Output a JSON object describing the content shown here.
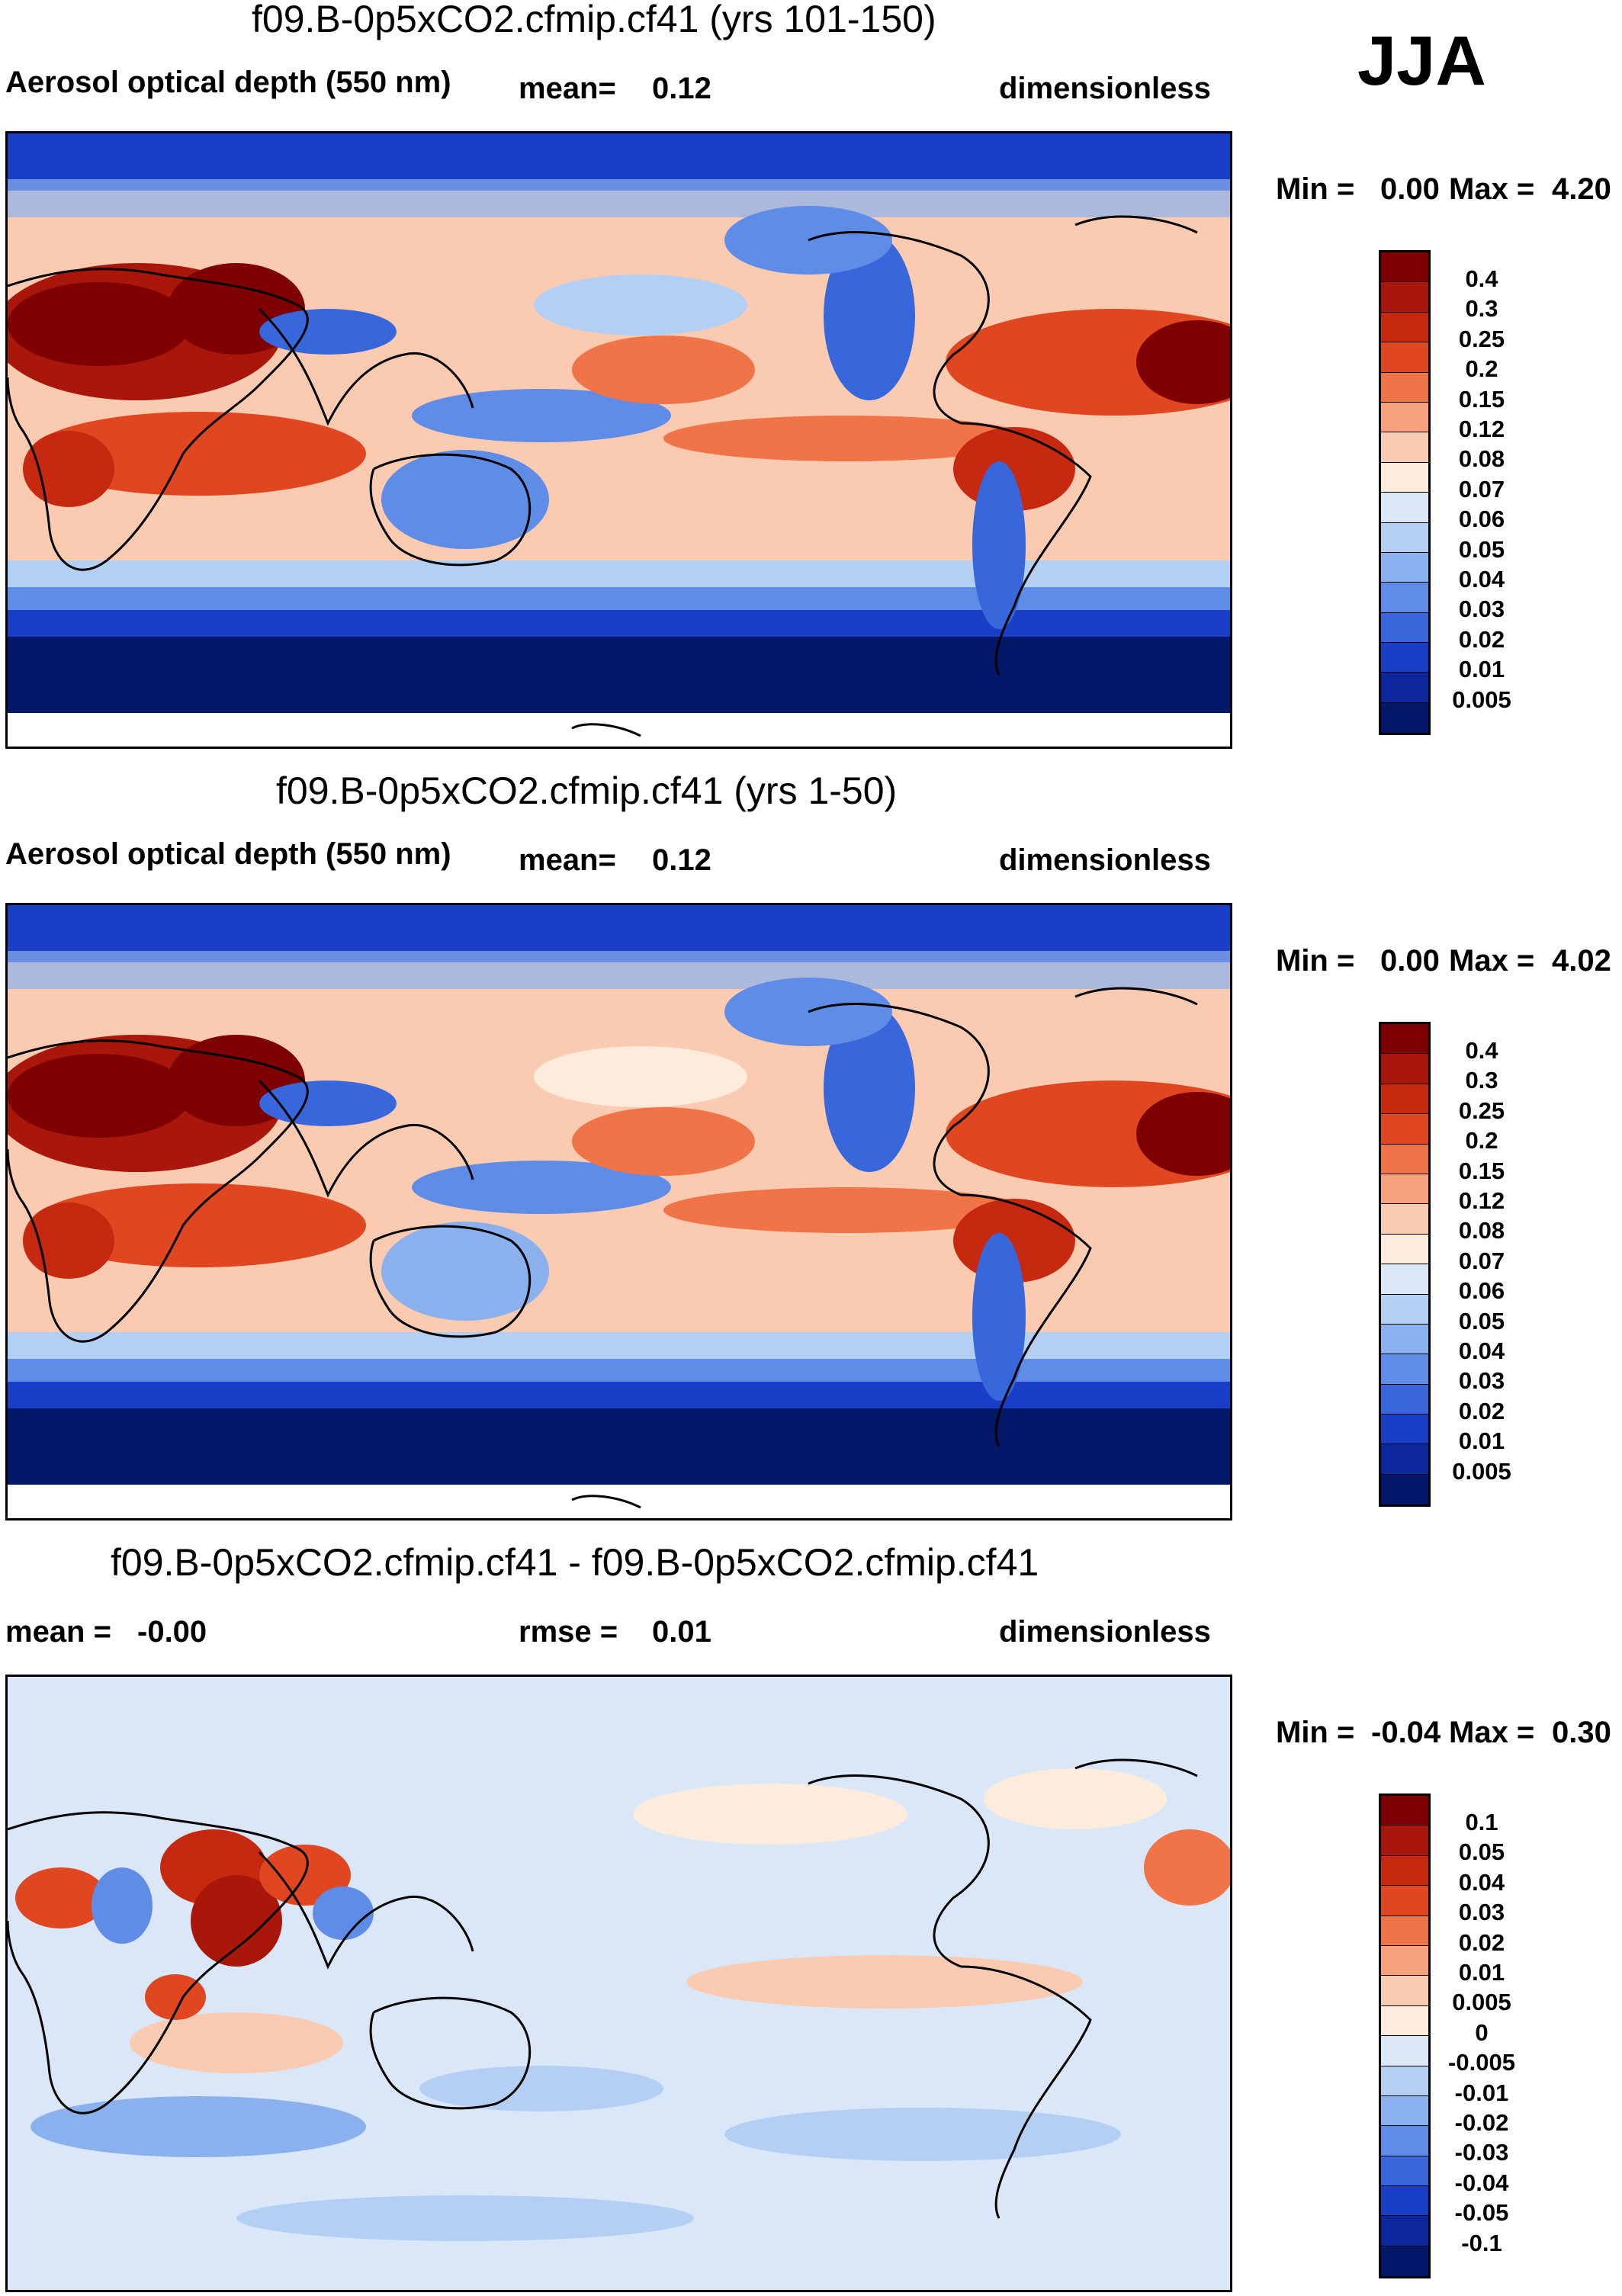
{
  "season_label": "JJA",
  "panels": [
    {
      "title": "f09.B-0p5xCO2.cfmip.cf41 (yrs 101-150)",
      "variable": "Aerosol optical depth (550 nm)",
      "stat_label": "mean=",
      "stat_value": "0.12",
      "stat2_label": "",
      "stat2_value": "",
      "units": "dimensionless",
      "min_label": "Min =",
      "min_value": "0.00",
      "max_label": "Max =",
      "max_value": "4.20",
      "colorbar_levels": [
        "0.4",
        "0.3",
        "0.25",
        "0.2",
        "0.15",
        "0.12",
        "0.08",
        "0.07",
        "0.06",
        "0.05",
        "0.04",
        "0.03",
        "0.02",
        "0.01",
        "0.005"
      ]
    },
    {
      "title": "f09.B-0p5xCO2.cfmip.cf41 (yrs 1-50)",
      "variable": "Aerosol optical depth (550 nm)",
      "stat_label": "mean=",
      "stat_value": "0.12",
      "stat2_label": "",
      "stat2_value": "",
      "units": "dimensionless",
      "min_label": "Min =",
      "min_value": "0.00",
      "max_label": "Max =",
      "max_value": "4.02",
      "colorbar_levels": [
        "0.4",
        "0.3",
        "0.25",
        "0.2",
        "0.15",
        "0.12",
        "0.08",
        "0.07",
        "0.06",
        "0.05",
        "0.04",
        "0.03",
        "0.02",
        "0.01",
        "0.005"
      ]
    },
    {
      "title": "f09.B-0p5xCO2.cfmip.cf41 - f09.B-0p5xCO2.cfmip.cf41",
      "variable": "",
      "stat_label": "mean =",
      "stat_value": "-0.00",
      "stat2_label": "rmse =",
      "stat2_value": "0.01",
      "units": "dimensionless",
      "min_label": "Min =",
      "min_value": "-0.04",
      "max_label": "Max =",
      "max_value": "0.30",
      "colorbar_levels": [
        "0.1",
        "0.05",
        "0.04",
        "0.03",
        "0.02",
        "0.01",
        "0.005",
        "0",
        "-0.005",
        "-0.01",
        "-0.02",
        "-0.03",
        "-0.04",
        "-0.05",
        "-0.1"
      ]
    }
  ],
  "colors": {
    "scale": [
      "#7f0000",
      "#a8170a",
      "#c6290f",
      "#e0461f",
      "#f07447",
      "#f7a27d",
      "#fbcbb1",
      "#fdebdc",
      "#d9e7f8",
      "#b3cff4",
      "#8bb0ee",
      "#5f8ce6",
      "#3866db",
      "#1a3fc6",
      "#0c2799",
      "#04186a"
    ]
  }
}
